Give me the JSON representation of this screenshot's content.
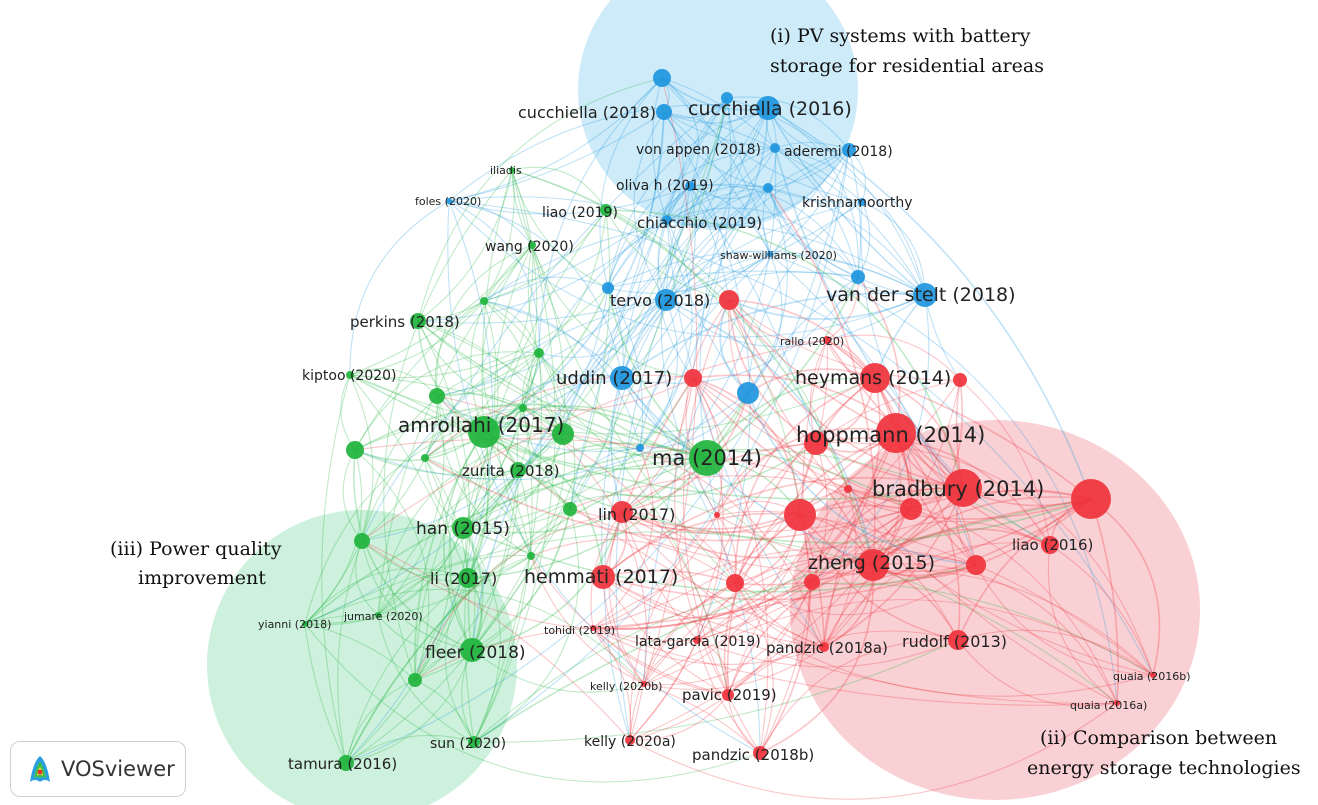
{
  "colors": {
    "red": "#f0323c",
    "green": "#20b43c",
    "blue": "#1e96de",
    "red_cluster_bg": "#f8c8cc",
    "green_cluster_bg": "#c4eed6",
    "blue_cluster_bg": "#c6e8f8"
  },
  "captions": {
    "pv_line1": "(i) PV systems with battery",
    "pv_line2": "storage for residential areas",
    "ess_line1": "(ii) Comparison between",
    "ess_line2": "energy storage technologies",
    "pq_line1": "(iii) Power quality",
    "pq_line2": "improvement"
  },
  "brand": {
    "name": "VOSviewer",
    "logo_icon": "vosviewer-logo-icon"
  },
  "nodes": [
    {
      "id": "cucchiella2016",
      "label": "cucchiella (2016)",
      "cluster": "blue",
      "weight": 3
    },
    {
      "id": "cucchiella2018",
      "label": "cucchiella (2018)",
      "cluster": "blue",
      "weight": 2
    },
    {
      "id": "vonappen2018",
      "label": "von appen (2018)",
      "cluster": "blue",
      "weight": 1
    },
    {
      "id": "aderemi2018",
      "label": "aderemi (2018)",
      "cluster": "blue",
      "weight": 1
    },
    {
      "id": "olivah2019",
      "label": "oliva h (2019)",
      "cluster": "blue",
      "weight": 1
    },
    {
      "id": "krishnamoorthy",
      "label": "krishnamoorthy",
      "cluster": "blue",
      "weight": 1
    },
    {
      "id": "chiacchio2019",
      "label": "chiacchio (2019)",
      "cluster": "blue",
      "weight": 1
    },
    {
      "id": "shawwilliams2020",
      "label": "shaw-williams (2020)",
      "cluster": "blue",
      "weight": 1
    },
    {
      "id": "tervo2018",
      "label": "tervo (2018)",
      "cluster": "blue",
      "weight": 2
    },
    {
      "id": "vanderstelt2018",
      "label": "van der stelt (2018)",
      "cluster": "blue",
      "weight": 3
    },
    {
      "id": "uddin2017",
      "label": "uddin (2017)",
      "cluster": "blue",
      "weight": 3
    },
    {
      "id": "foles2020",
      "label": "foles (2020)",
      "cluster": "blue",
      "weight": 1
    },
    {
      "id": "iliadis",
      "label": "iliadis",
      "cluster": "green",
      "weight": 1
    },
    {
      "id": "liao2019",
      "label": "liao (2019)",
      "cluster": "green",
      "weight": 1
    },
    {
      "id": "wang2020",
      "label": "wang (2020)",
      "cluster": "green",
      "weight": 1
    },
    {
      "id": "perkins2018",
      "label": "perkins (2018)",
      "cluster": "green",
      "weight": 2
    },
    {
      "id": "kiptoo2020",
      "label": "kiptoo (2020)",
      "cluster": "green",
      "weight": 1
    },
    {
      "id": "amrollahi2017",
      "label": "amrollahi (2017)",
      "cluster": "green",
      "weight": 4
    },
    {
      "id": "ma2014",
      "label": "ma (2014)",
      "cluster": "green",
      "weight": 5
    },
    {
      "id": "zurita2018",
      "label": "zurita (2018)",
      "cluster": "green",
      "weight": 2
    },
    {
      "id": "han2015",
      "label": "han (2015)",
      "cluster": "green",
      "weight": 3
    },
    {
      "id": "li2017",
      "label": "li (2017)",
      "cluster": "green",
      "weight": 2
    },
    {
      "id": "yianni2018",
      "label": "yianni (2018)",
      "cluster": "green",
      "weight": 1
    },
    {
      "id": "jumare2020",
      "label": "jumare (2020)",
      "cluster": "green",
      "weight": 1
    },
    {
      "id": "fleer2018",
      "label": "fleer (2018)",
      "cluster": "green",
      "weight": 3
    },
    {
      "id": "sun2020",
      "label": "sun (2020)",
      "cluster": "green",
      "weight": 1
    },
    {
      "id": "tamura2016",
      "label": "tamura (2016)",
      "cluster": "green",
      "weight": 2
    },
    {
      "id": "heymans2014",
      "label": "heymans (2014)",
      "cluster": "red",
      "weight": 4
    },
    {
      "id": "hoppmann2014",
      "label": "hoppmann (2014)",
      "cluster": "red",
      "weight": 5
    },
    {
      "id": "bradbury2014",
      "label": "bradbury (2014)",
      "cluster": "red",
      "weight": 5
    },
    {
      "id": "rallo2020",
      "label": "rallo (2020)",
      "cluster": "red",
      "weight": 1
    },
    {
      "id": "lin2017",
      "label": "lin (2017)",
      "cluster": "red",
      "weight": 2
    },
    {
      "id": "liao2016",
      "label": "liao (2016)",
      "cluster": "red",
      "weight": 2
    },
    {
      "id": "zheng2015",
      "label": "zheng (2015)",
      "cluster": "red",
      "weight": 4
    },
    {
      "id": "hemmati2017",
      "label": "hemmati (2017)",
      "cluster": "red",
      "weight": 3
    },
    {
      "id": "tohidi2019",
      "label": "tohidi (2019)",
      "cluster": "red",
      "weight": 1
    },
    {
      "id": "latagarcia2019",
      "label": "lata-garcia (2019)",
      "cluster": "red",
      "weight": 1
    },
    {
      "id": "pandzic2018a",
      "label": "pandzic (2018a)",
      "cluster": "red",
      "weight": 1
    },
    {
      "id": "rudolf2013",
      "label": "rudolf (2013)",
      "cluster": "red",
      "weight": 2
    },
    {
      "id": "kelly2020b",
      "label": "kelly (2020b)",
      "cluster": "red",
      "weight": 1
    },
    {
      "id": "pavic2019",
      "label": "pavic (2019)",
      "cluster": "red",
      "weight": 1
    },
    {
      "id": "kelly2020a",
      "label": "kelly (2020a)",
      "cluster": "red",
      "weight": 1
    },
    {
      "id": "pandzic2018b",
      "label": "pandzic (2018b)",
      "cluster": "red",
      "weight": 1
    },
    {
      "id": "quaia2016b",
      "label": "quaia (2016b)",
      "cluster": "red",
      "weight": 1
    },
    {
      "id": "quaia2016a",
      "label": "quaia (2016a)",
      "cluster": "red",
      "weight": 1
    }
  ]
}
